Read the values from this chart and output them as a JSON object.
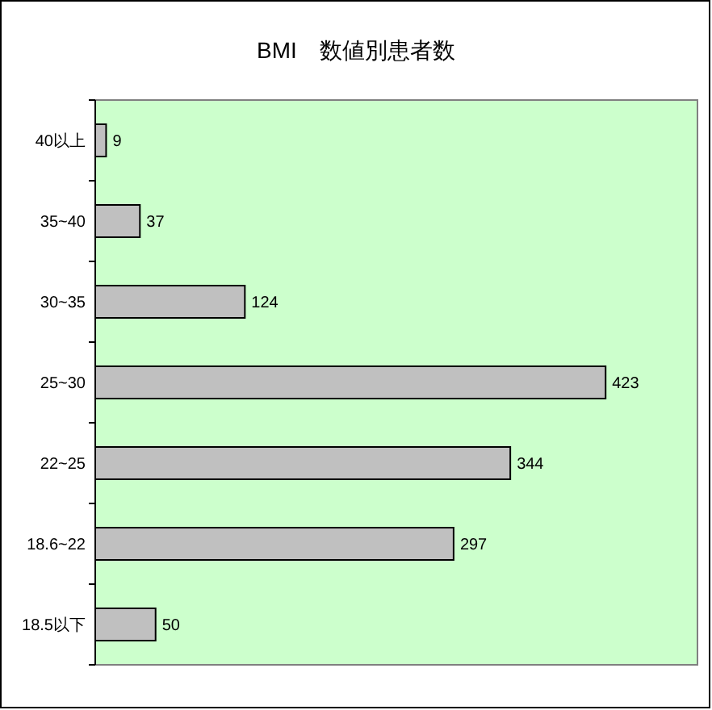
{
  "chart_data": {
    "type": "bar",
    "orientation": "horizontal",
    "title": "BMI　数値別患者数",
    "categories": [
      "40以上",
      "35~40",
      "30~35",
      "25~30",
      "22~25",
      "18.6~22",
      "18.5以下"
    ],
    "values": [
      9,
      37,
      124,
      423,
      344,
      297,
      50
    ],
    "color": "#c0c0c0",
    "data_labels": true
  }
}
